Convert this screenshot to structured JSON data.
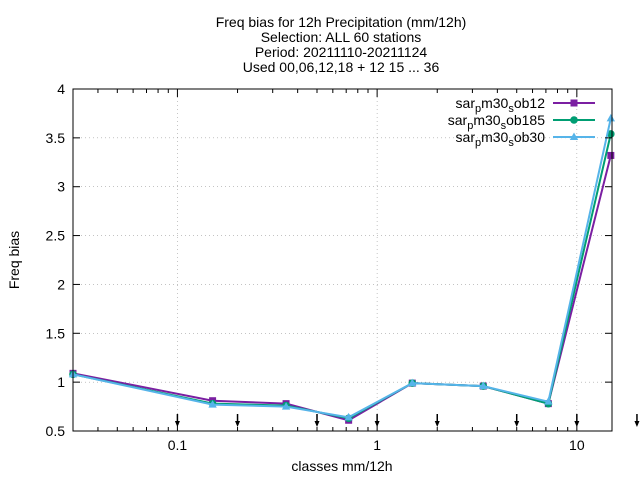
{
  "chart_data": {
    "type": "line",
    "title_lines": [
      "Freq bias  for 12h Precipitation (mm/12h)",
      "Selection: ALL     60 stations",
      "Period: 20211110-20211124",
      "Used 00,06,12,18 + 12 15 ... 36"
    ],
    "xlabel": "classes mm/12h",
    "ylabel": "Freq bias",
    "x_scale": "log",
    "xlim": [
      0.03,
      15
    ],
    "ylim": [
      0.5,
      4
    ],
    "x_ticks": [
      {
        "value": 0.1,
        "label": "0.1"
      },
      {
        "value": 1,
        "label": "1"
      },
      {
        "value": 10,
        "label": "10"
      }
    ],
    "y_ticks": [
      {
        "value": 0.5,
        "label": "0.5"
      },
      {
        "value": 1,
        "label": "1"
      },
      {
        "value": 1.5,
        "label": "1.5"
      },
      {
        "value": 2,
        "label": "2"
      },
      {
        "value": 2.5,
        "label": "2.5"
      },
      {
        "value": 3,
        "label": "3"
      },
      {
        "value": 3.5,
        "label": "3.5"
      },
      {
        "value": 4,
        "label": "4"
      }
    ],
    "grid": true,
    "legend_placement": "top-right",
    "threshold_markers_x": [
      0.1,
      0.2,
      0.5,
      1,
      2,
      5,
      10,
      20
    ],
    "x": [
      0.03,
      0.15,
      0.35,
      0.72,
      1.5,
      3.4,
      7.2,
      14.8
    ],
    "series": [
      {
        "legend": {
          "pre": "sar",
          "sub1": "p",
          "mid": "m30",
          "sub2": "s",
          "post": "ob12"
        },
        "color": "#7b1fa2",
        "marker": "square",
        "values": [
          1.09,
          0.81,
          0.78,
          0.61,
          0.99,
          0.96,
          0.78,
          3.32
        ]
      },
      {
        "legend": {
          "pre": "sar",
          "sub1": "p",
          "mid": "m30",
          "sub2": "s",
          "post": "ob185"
        },
        "color": "#009e73",
        "marker": "circle",
        "values": [
          1.08,
          0.78,
          0.76,
          0.63,
          0.99,
          0.96,
          0.78,
          3.54
        ]
      },
      {
        "legend": {
          "pre": "sar",
          "sub1": "p",
          "mid": "m30",
          "sub2": "s",
          "post": "ob30"
        },
        "color": "#56b4e9",
        "marker": "triangle",
        "values": [
          1.08,
          0.77,
          0.75,
          0.64,
          0.99,
          0.96,
          0.8,
          3.7
        ]
      }
    ]
  }
}
